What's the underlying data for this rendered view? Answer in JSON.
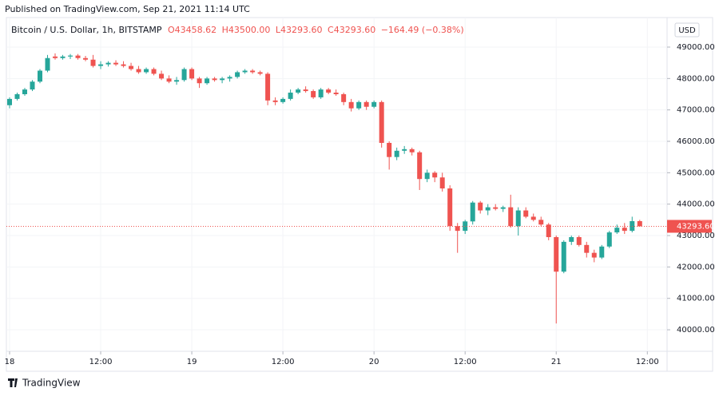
{
  "header": {
    "published": "Published on TradingView.com, Sep 21, 2021 11:14 UTC",
    "logo": "TradingView"
  },
  "chart_data": {
    "type": "candlestick",
    "symbol": "Bitcoin / U.S. Dollar, 1h, BITSTAMP",
    "ohlc_labels": [
      "O43458.62",
      "H43500.00",
      "L43293.60",
      "C43293.60"
    ],
    "change_label": "−164.49 (−0.38%)",
    "axis_unit": "USD",
    "price_tag": "43293.60",
    "up_color": "#26a69a",
    "down_color": "#ef5350",
    "grid": true,
    "x": [
      0,
      1,
      2,
      3,
      4,
      5,
      6,
      7,
      8,
      9,
      10,
      11,
      12,
      13,
      14,
      15,
      16,
      17,
      18,
      19,
      20,
      21,
      22,
      23,
      24,
      25,
      26,
      27,
      28,
      29,
      30,
      31,
      32,
      33,
      34,
      35,
      36,
      37,
      38,
      39,
      40,
      41,
      42,
      43,
      44,
      45,
      46,
      47,
      48,
      49,
      50,
      51,
      52,
      53,
      54,
      55,
      56,
      57,
      58,
      59,
      60,
      61,
      62,
      63,
      64,
      65,
      66,
      67,
      68,
      69,
      70,
      71,
      72,
      73,
      74,
      75,
      76,
      77,
      78,
      79,
      80,
      81,
      82,
      83
    ],
    "open": [
      47150,
      47350,
      47500,
      47650,
      47900,
      48250,
      48700,
      48650,
      48700,
      48730,
      48650,
      48600,
      48400,
      48450,
      48500,
      48450,
      48400,
      48300,
      48200,
      48300,
      48150,
      48000,
      47900,
      47950,
      48300,
      48000,
      47850,
      48000,
      47950,
      48000,
      48050,
      48200,
      48250,
      48200,
      48150,
      47300,
      47250,
      47350,
      47550,
      47650,
      47600,
      47400,
      47650,
      47550,
      47500,
      47250,
      47050,
      47250,
      47100,
      47250,
      45950,
      45500,
      45700,
      45750,
      45650,
      44800,
      45000,
      44850,
      44500,
      43300,
      43150,
      43450,
      44050,
      43800,
      43900,
      43850,
      43900,
      43300,
      43800,
      43600,
      43500,
      43350,
      42950,
      41850,
      42800,
      42950,
      42700,
      42450,
      42300,
      42650,
      43100,
      43250,
      43150,
      43458.62
    ],
    "high": [
      47400,
      47550,
      47700,
      47950,
      48300,
      48750,
      48800,
      48750,
      48780,
      48780,
      48720,
      48750,
      48550,
      48550,
      48580,
      48550,
      48500,
      48400,
      48350,
      48350,
      48250,
      48100,
      48050,
      48350,
      48350,
      48050,
      48050,
      48050,
      48050,
      48100,
      48250,
      48300,
      48300,
      48250,
      48200,
      47400,
      47400,
      47650,
      47700,
      47750,
      47650,
      47700,
      47700,
      47650,
      47550,
      47350,
      47300,
      47300,
      47300,
      47300,
      46000,
      45800,
      45850,
      45800,
      45700,
      45100,
      45050,
      45000,
      44600,
      43400,
      43500,
      44100,
      44100,
      44000,
      44000,
      43950,
      44300,
      43900,
      43900,
      43700,
      43600,
      43400,
      43000,
      42850,
      43000,
      43000,
      42800,
      42550,
      42700,
      43150,
      43350,
      43400,
      43600,
      43500
    ],
    "low": [
      47050,
      47300,
      47450,
      47600,
      47850,
      48200,
      48600,
      48600,
      48620,
      48600,
      48550,
      48350,
      48300,
      48380,
      48400,
      48350,
      48250,
      48150,
      48150,
      48100,
      47950,
      47850,
      47800,
      47900,
      47950,
      47700,
      47800,
      47900,
      47850,
      47900,
      48000,
      48150,
      48150,
      48100,
      47150,
      47150,
      47200,
      47300,
      47500,
      47550,
      47350,
      47350,
      47500,
      47450,
      47150,
      46950,
      47000,
      47000,
      47050,
      45800,
      45100,
      45400,
      45600,
      45550,
      44450,
      44700,
      44700,
      44400,
      43150,
      42450,
      43050,
      43350,
      43700,
      43650,
      43800,
      43750,
      43250,
      43000,
      43550,
      43450,
      43300,
      42850,
      40200,
      41800,
      42700,
      42650,
      42300,
      42150,
      42250,
      42600,
      43050,
      43050,
      43100,
      43293.6
    ],
    "close": [
      47350,
      47500,
      47650,
      47900,
      48250,
      48650,
      48650,
      48700,
      48730,
      48650,
      48600,
      48400,
      48450,
      48500,
      48450,
      48400,
      48300,
      48200,
      48300,
      48150,
      48000,
      47900,
      47950,
      48300,
      48000,
      47850,
      48000,
      47950,
      48000,
      48050,
      48200,
      48250,
      48200,
      48150,
      47300,
      47250,
      47350,
      47550,
      47650,
      47600,
      47400,
      47650,
      47550,
      47500,
      47250,
      47050,
      47250,
      47100,
      47250,
      45950,
      45500,
      45700,
      45750,
      45650,
      44800,
      45000,
      44850,
      44500,
      43300,
      43150,
      43450,
      44050,
      43800,
      43900,
      43850,
      43900,
      43300,
      43800,
      43600,
      43500,
      43350,
      42950,
      41850,
      42800,
      42950,
      42700,
      42450,
      42300,
      42650,
      43100,
      43250,
      43150,
      43458.62,
      43293.6
    ],
    "xlim": [
      -0.42,
      86.6
    ],
    "xticks": [
      {
        "value": 0,
        "label": "18"
      },
      {
        "value": 12,
        "label": "12:00"
      },
      {
        "value": 24,
        "label": "19"
      },
      {
        "value": 36,
        "label": "12:00"
      },
      {
        "value": 48,
        "label": "20"
      },
      {
        "value": 60,
        "label": "12:00"
      },
      {
        "value": 72,
        "label": "21"
      },
      {
        "value": 84,
        "label": "12:00"
      }
    ],
    "ylim": [
      39315,
      49940
    ],
    "yticks": [
      {
        "value": 40000,
        "label": "40000.00"
      },
      {
        "value": 41000,
        "label": "41000.00"
      },
      {
        "value": 42000,
        "label": "42000.00"
      },
      {
        "value": 43000,
        "label": "43000.00"
      },
      {
        "value": 44000,
        "label": "44000.00"
      },
      {
        "value": 45000,
        "label": "45000.00"
      },
      {
        "value": 46000,
        "label": "46000.00"
      },
      {
        "value": 47000,
        "label": "47000.00"
      },
      {
        "value": 48000,
        "label": "48000.00"
      },
      {
        "value": 49000,
        "label": "49000.00"
      }
    ]
  }
}
